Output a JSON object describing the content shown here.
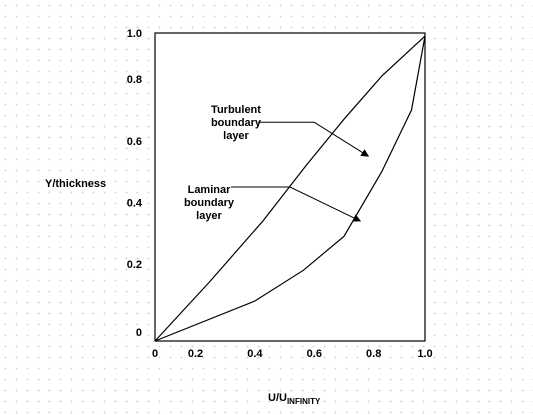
{
  "chart_data": {
    "type": "line",
    "title": "",
    "xlabel_main": "U/U",
    "xlabel_sub": "INFINITY",
    "ylabel": "Y/thickness",
    "xlim": [
      0,
      1.0
    ],
    "ylim": [
      0,
      1.0
    ],
    "x_ticks": [
      {
        "value": 0,
        "label": "0"
      },
      {
        "value": 0.15,
        "label": "0.2"
      },
      {
        "value": 0.37,
        "label": "0.4"
      },
      {
        "value": 0.59,
        "label": "0.6"
      },
      {
        "value": 0.81,
        "label": "0.8"
      },
      {
        "value": 1.0,
        "label": "1.0"
      }
    ],
    "y_ticks": [
      {
        "value": 0.03,
        "label": "0"
      },
      {
        "value": 0.25,
        "label": "0.2"
      },
      {
        "value": 0.45,
        "label": "0.4"
      },
      {
        "value": 0.65,
        "label": "0.6"
      },
      {
        "value": 0.85,
        "label": "0.8"
      },
      {
        "value": 1.0,
        "label": "1.0"
      }
    ],
    "grid": false,
    "legend": "none",
    "series": [
      {
        "x": [
          0,
          0.2,
          0.4,
          0.56,
          0.7,
          0.84,
          1.0
        ],
        "y": [
          0,
          0.19,
          0.39,
          0.57,
          0.72,
          0.86,
          0.99
        ]
      },
      {
        "x": [
          0,
          0.37,
          0.55,
          0.7,
          0.84,
          0.95,
          1.0
        ],
        "y": [
          0,
          0.13,
          0.23,
          0.34,
          0.55,
          0.75,
          0.99
        ]
      }
    ],
    "annotations": [
      {
        "lines": [
          "Turbulent",
          "boundary",
          "layer"
        ],
        "text_x": 0.3,
        "text_y": 0.74,
        "leader_x": 0.59,
        "leader_y": 0.71,
        "target_x": 0.79,
        "target_y": 0.6
      },
      {
        "lines": [
          "Laminar",
          "boundary",
          "layer"
        ],
        "text_x": 0.2,
        "text_y": 0.48,
        "leader_x": 0.5,
        "leader_y": 0.5,
        "target_x": 0.76,
        "target_y": 0.39
      }
    ],
    "colors": {
      "line": "#000000",
      "frame": "#000000"
    }
  }
}
